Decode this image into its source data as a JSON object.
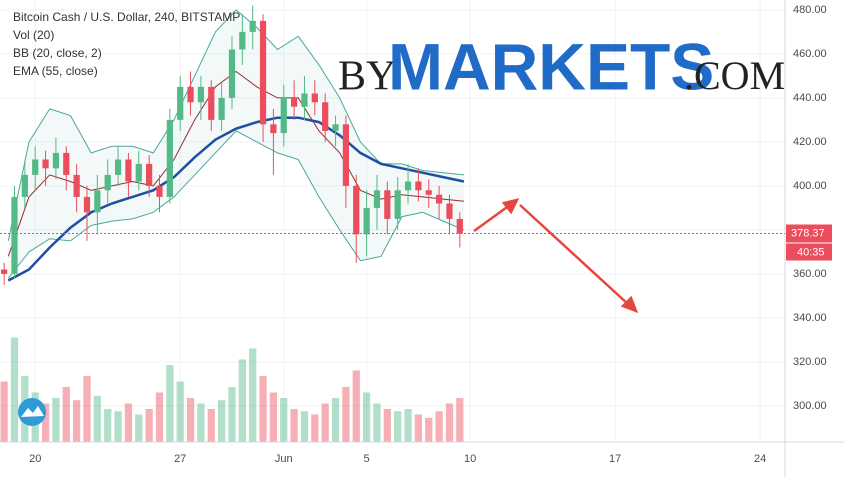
{
  "chart_data": {
    "type": "candlestick",
    "legend_lines": [
      "Bitcoin Cash / U.S. Dollar, 240, BITSTAMP",
      "Vol (20)",
      "BB (20, close, 2)",
      "EMA (55, close)"
    ],
    "watermark": {
      "prefix": "BY",
      "main": "MARKETS",
      "suffix": ".COM"
    },
    "xlim": [
      -1.7,
      36.2
    ],
    "ylim": [
      283.6,
      484.5
    ],
    "xticks": [
      {
        "value": 0,
        "label": "20"
      },
      {
        "value": 7,
        "label": "27"
      },
      {
        "value": 12,
        "label": "Jun"
      },
      {
        "value": 16,
        "label": "5"
      },
      {
        "value": 21,
        "label": "10"
      },
      {
        "value": 28,
        "label": "17"
      },
      {
        "value": 35,
        "label": "24"
      }
    ],
    "yticks": [
      {
        "value": 300,
        "label": "300.00"
      },
      {
        "value": 320,
        "label": "320.00"
      },
      {
        "value": 340,
        "label": "340.00"
      },
      {
        "value": 360,
        "label": "360.00"
      },
      {
        "value": 380,
        "label": "380.00"
      },
      {
        "value": 400,
        "label": "400.00"
      },
      {
        "value": 420,
        "label": "420.00"
      },
      {
        "value": 440,
        "label": "440.00"
      },
      {
        "value": 460,
        "label": "460.00"
      },
      {
        "value": 480,
        "label": "480.00"
      }
    ],
    "grid": true,
    "up_color": "#53b987",
    "down_color": "#eb4d5c",
    "candles": {
      "x": [
        -1.5,
        -1,
        -0.5,
        0,
        0.5,
        1,
        1.5,
        2,
        2.5,
        3,
        3.5,
        4,
        4.5,
        5,
        5.5,
        6,
        6.5,
        7,
        7.5,
        8,
        8.5,
        9,
        9.5,
        10,
        10.5,
        11,
        11.5,
        12,
        12.5,
        13,
        13.5,
        14,
        14.5,
        15,
        15.5,
        16,
        16.5,
        17,
        17.5,
        18,
        18.5,
        19,
        19.5,
        20,
        20.5
      ],
      "open": [
        362,
        360,
        395,
        405,
        412,
        408,
        415,
        405,
        395,
        388,
        398,
        405,
        412,
        402,
        410,
        400,
        395,
        430,
        445,
        438,
        445,
        430,
        440,
        462,
        470,
        475,
        428,
        424,
        440,
        436,
        442,
        438,
        425,
        428,
        400,
        378,
        390,
        398,
        385,
        398,
        402,
        398,
        396,
        392,
        385
      ],
      "high": [
        365,
        400,
        412,
        418,
        416,
        422,
        418,
        410,
        400,
        405,
        412,
        418,
        415,
        416,
        414,
        405,
        435,
        450,
        452,
        450,
        448,
        447,
        468,
        478,
        482,
        478,
        435,
        446,
        448,
        450,
        448,
        442,
        432,
        432,
        405,
        398,
        405,
        402,
        404,
        410,
        408,
        403,
        400,
        396,
        388
      ],
      "low": [
        355,
        358,
        390,
        398,
        400,
        403,
        398,
        388,
        375,
        378,
        392,
        400,
        395,
        398,
        395,
        388,
        392,
        425,
        432,
        430,
        425,
        425,
        435,
        455,
        462,
        420,
        405,
        418,
        430,
        430,
        432,
        420,
        418,
        390,
        365,
        368,
        380,
        378,
        380,
        392,
        393,
        390,
        385,
        378,
        372
      ],
      "close": [
        360,
        395,
        405,
        412,
        408,
        415,
        405,
        395,
        388,
        398,
        405,
        412,
        402,
        410,
        400,
        395,
        430,
        445,
        438,
        445,
        430,
        440,
        462,
        470,
        475,
        428,
        424,
        440,
        436,
        442,
        438,
        425,
        428,
        400,
        378,
        390,
        398,
        385,
        398,
        402,
        398,
        396,
        392,
        385,
        378.37
      ]
    },
    "volume": [
      55,
      95,
      60,
      45,
      35,
      40,
      50,
      38,
      60,
      42,
      30,
      28,
      35,
      25,
      30,
      45,
      70,
      55,
      40,
      35,
      30,
      38,
      50,
      75,
      85,
      60,
      45,
      40,
      30,
      28,
      25,
      35,
      40,
      50,
      65,
      45,
      35,
      30,
      28,
      30,
      25,
      22,
      28,
      35,
      40
    ],
    "volume_lim": [
      0,
      100
    ],
    "indicators": {
      "x": [
        -1.3,
        -0.3,
        0.7,
        1.7,
        2.7,
        3.7,
        4.7,
        5.7,
        6.7,
        7.7,
        8.7,
        9.7,
        10.7,
        11.7,
        12.7,
        13.7,
        14.7,
        15.7,
        16.7,
        17.7,
        18.7,
        19.7,
        20.7
      ],
      "series": [
        {
          "name": "BB upper",
          "color": "#4aa79b",
          "values": [
            375,
            420,
            435,
            432,
            415,
            418,
            418,
            415,
            430,
            450,
            470,
            480,
            472,
            462,
            468,
            455,
            440,
            420,
            410,
            410,
            407,
            406,
            405
          ]
        },
        {
          "name": "BB basis",
          "color": "#9c2b2b",
          "values": [
            368,
            395,
            405,
            402,
            398,
            400,
            402,
            400,
            412,
            430,
            445,
            452,
            445,
            440,
            440,
            425,
            415,
            398,
            394,
            396,
            395,
            394,
            393
          ]
        },
        {
          "name": "BB lower",
          "color": "#4aa79b",
          "values": [
            358,
            370,
            376,
            375,
            382,
            384,
            385,
            388,
            395,
            405,
            415,
            425,
            420,
            415,
            412,
            395,
            380,
            366,
            368,
            386,
            388,
            384,
            380
          ]
        },
        {
          "name": "EMA",
          "color": "#1e4fa1",
          "values": [
            357,
            362,
            372,
            381,
            388,
            392,
            395,
            398,
            404,
            413,
            421,
            426,
            429,
            431,
            431,
            429,
            423,
            415,
            410,
            408,
            406,
            404,
            402
          ]
        }
      ]
    },
    "last_price": 378.37,
    "countdown": "40:35"
  }
}
